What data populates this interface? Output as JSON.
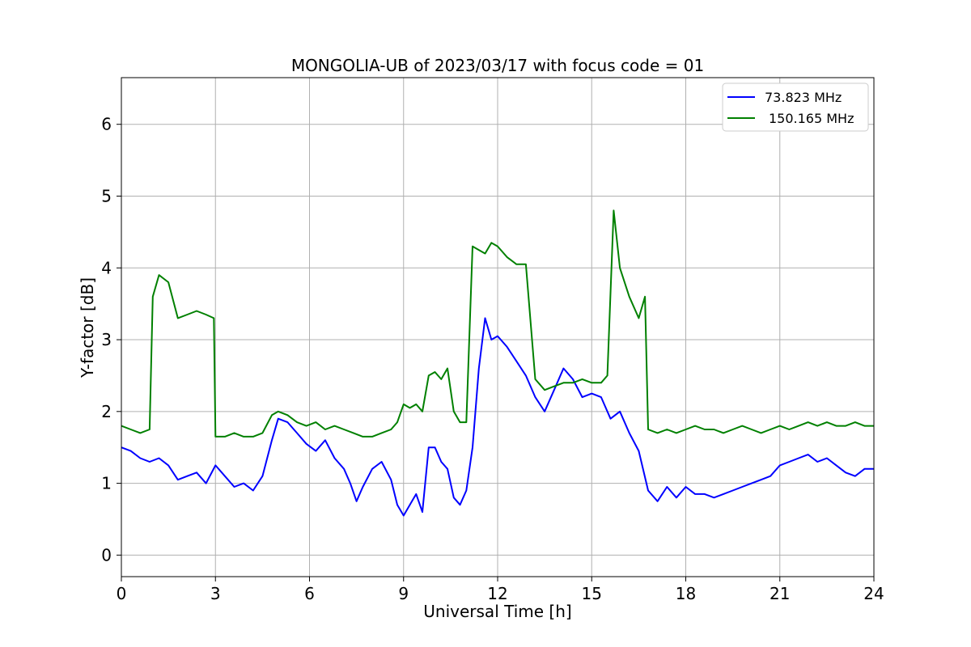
{
  "chart_data": {
    "type": "line",
    "title": "MONGOLIA-UB of 2023/03/17 with focus code = 01",
    "xlabel": "Universal Time [h]",
    "ylabel": "Y-factor [dB]",
    "xlim": [
      0,
      24
    ],
    "ylim": [
      -0.3,
      6.65
    ],
    "x_ticks": [
      0,
      3,
      6,
      9,
      12,
      15,
      18,
      21,
      24
    ],
    "x_tick_labels": [
      "0",
      "3",
      "6",
      "9",
      "12",
      "15",
      "18",
      "21",
      "24"
    ],
    "y_ticks": [
      0,
      1,
      2,
      3,
      4,
      5,
      6
    ],
    "y_tick_labels": [
      "0",
      "1",
      "2",
      "3",
      "4",
      "5",
      "6"
    ],
    "grid": true,
    "legend_position": "top-right",
    "series": [
      {
        "name": " 73.823 MHz",
        "color": "#0000ff",
        "x": [
          0,
          0.3,
          0.6,
          0.9,
          1.2,
          1.5,
          1.8,
          2.1,
          2.4,
          2.7,
          3.0,
          3.3,
          3.6,
          3.9,
          4.2,
          4.5,
          4.8,
          5.0,
          5.3,
          5.6,
          5.9,
          6.2,
          6.5,
          6.8,
          7.1,
          7.3,
          7.5,
          7.7,
          8.0,
          8.3,
          8.6,
          8.8,
          9.0,
          9.2,
          9.4,
          9.6,
          9.8,
          10.0,
          10.2,
          10.4,
          10.6,
          10.8,
          11.0,
          11.2,
          11.4,
          11.6,
          11.8,
          12.0,
          12.3,
          12.6,
          12.9,
          13.2,
          13.5,
          13.8,
          14.1,
          14.4,
          14.7,
          15.0,
          15.3,
          15.6,
          15.9,
          16.2,
          16.5,
          16.8,
          17.1,
          17.4,
          17.7,
          18.0,
          18.3,
          18.6,
          18.9,
          19.2,
          19.5,
          19.8,
          20.1,
          20.4,
          20.7,
          21.0,
          21.3,
          21.6,
          21.9,
          22.2,
          22.5,
          22.8,
          23.1,
          23.4,
          23.7,
          24.0
        ],
        "values": [
          1.5,
          1.45,
          1.35,
          1.3,
          1.35,
          1.25,
          1.05,
          1.1,
          1.15,
          1.0,
          1.25,
          1.1,
          0.95,
          1.0,
          0.9,
          1.1,
          1.6,
          1.9,
          1.85,
          1.7,
          1.55,
          1.45,
          1.6,
          1.35,
          1.2,
          1.0,
          0.75,
          0.95,
          1.2,
          1.3,
          1.05,
          0.7,
          0.55,
          0.7,
          0.85,
          0.6,
          1.5,
          1.5,
          1.3,
          1.2,
          0.8,
          0.7,
          0.9,
          1.5,
          2.6,
          3.3,
          3.0,
          3.05,
          2.9,
          2.7,
          2.5,
          2.2,
          2.0,
          2.3,
          2.6,
          2.45,
          2.2,
          2.25,
          2.2,
          1.9,
          2.0,
          1.7,
          1.45,
          0.9,
          0.75,
          0.95,
          0.8,
          0.95,
          0.85,
          0.85,
          0.8,
          0.85,
          0.9,
          0.95,
          1.0,
          1.05,
          1.1,
          1.25,
          1.3,
          1.35,
          1.4,
          1.3,
          1.35,
          1.25,
          1.15,
          1.1,
          1.2,
          1.2
        ]
      },
      {
        "name": "150.165 MHz",
        "color": "#008000",
        "x": [
          0,
          0.3,
          0.6,
          0.9,
          1.0,
          1.2,
          1.5,
          1.8,
          2.1,
          2.4,
          2.7,
          2.95,
          3.0,
          3.3,
          3.6,
          3.9,
          4.2,
          4.5,
          4.8,
          5.0,
          5.3,
          5.6,
          5.9,
          6.2,
          6.5,
          6.8,
          7.1,
          7.4,
          7.7,
          8.0,
          8.3,
          8.6,
          8.8,
          9.0,
          9.2,
          9.4,
          9.6,
          9.8,
          10.0,
          10.2,
          10.4,
          10.6,
          10.8,
          11.0,
          11.2,
          11.4,
          11.6,
          11.8,
          12.0,
          12.3,
          12.6,
          12.9,
          13.2,
          13.5,
          13.8,
          14.1,
          14.4,
          14.7,
          15.0,
          15.3,
          15.5,
          15.7,
          15.9,
          16.2,
          16.5,
          16.7,
          16.8,
          17.1,
          17.4,
          17.7,
          18.0,
          18.3,
          18.6,
          18.9,
          19.2,
          19.5,
          19.8,
          20.1,
          20.4,
          20.7,
          21.0,
          21.3,
          21.6,
          21.9,
          22.2,
          22.5,
          22.8,
          23.1,
          23.4,
          23.7,
          24.0
        ],
        "values": [
          1.8,
          1.75,
          1.7,
          1.75,
          3.6,
          3.9,
          3.8,
          3.3,
          3.35,
          3.4,
          3.35,
          3.3,
          1.65,
          1.65,
          1.7,
          1.65,
          1.65,
          1.7,
          1.95,
          2.0,
          1.95,
          1.85,
          1.8,
          1.85,
          1.75,
          1.8,
          1.75,
          1.7,
          1.65,
          1.65,
          1.7,
          1.75,
          1.85,
          2.1,
          2.05,
          2.1,
          2.0,
          2.5,
          2.55,
          2.45,
          2.6,
          2.0,
          1.85,
          1.85,
          4.3,
          4.25,
          4.2,
          4.35,
          4.3,
          4.15,
          4.05,
          4.05,
          2.45,
          2.3,
          2.35,
          2.4,
          2.4,
          2.45,
          2.4,
          2.4,
          2.5,
          4.8,
          4.0,
          3.6,
          3.3,
          3.6,
          1.75,
          1.7,
          1.75,
          1.7,
          1.75,
          1.8,
          1.75,
          1.75,
          1.7,
          1.75,
          1.8,
          1.75,
          1.7,
          1.75,
          1.8,
          1.75,
          1.8,
          1.85,
          1.8,
          1.85,
          1.8,
          1.8,
          1.85,
          1.8,
          1.8
        ]
      }
    ]
  }
}
